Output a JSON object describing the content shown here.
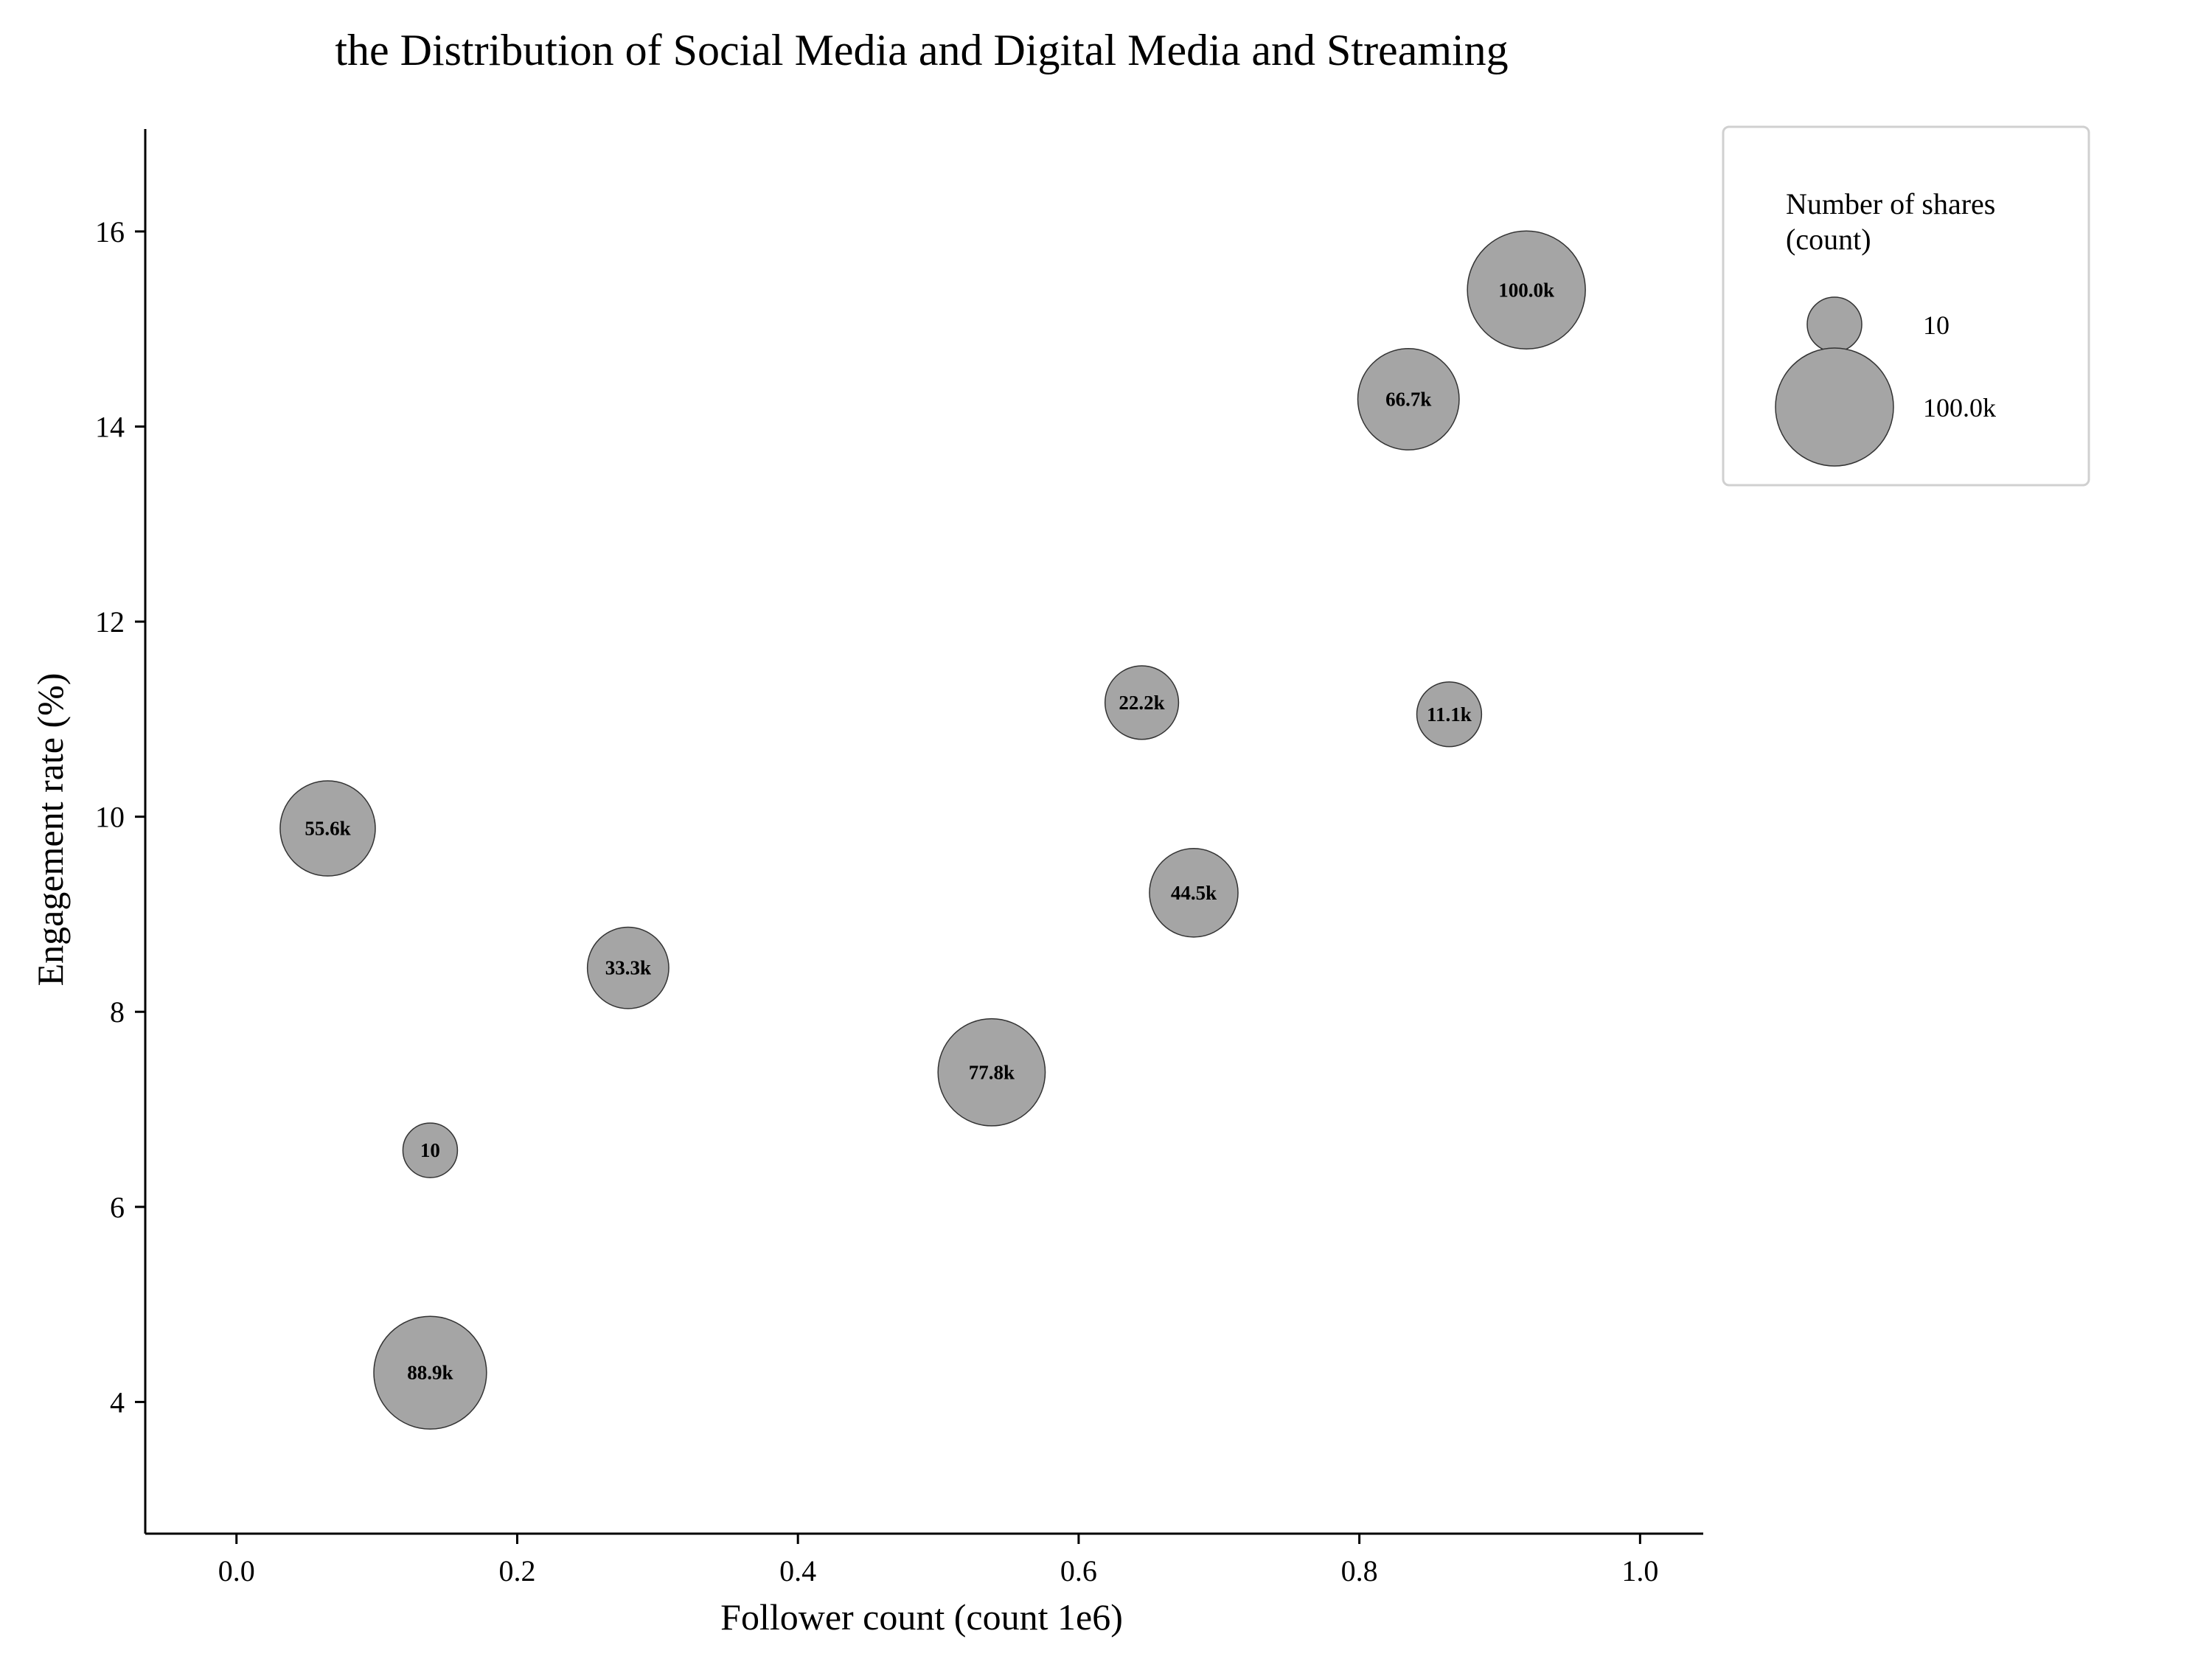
{
  "chart_data": {
    "type": "scatter",
    "title": "the Distribution of Social Media and Digital Media and Streaming",
    "xlabel": "Follower count (count 1e6)",
    "ylabel": "Engagement rate (%)",
    "xlim": [
      -0.065,
      1.045
    ],
    "ylim": [
      2.65,
      17.05
    ],
    "x_ticks": [
      0.0,
      0.2,
      0.4,
      0.6,
      0.8,
      1.0
    ],
    "x_tick_labels": [
      "0.0",
      "0.2",
      "0.4",
      "0.6",
      "0.8",
      "1.0"
    ],
    "y_ticks": [
      4,
      6,
      8,
      10,
      12,
      14,
      16
    ],
    "y_tick_labels": [
      "4",
      "6",
      "8",
      "10",
      "12",
      "14",
      "16"
    ],
    "grid": false,
    "legend_placement": "outside-top-right",
    "size_legend": {
      "title_lines": [
        "Number of shares",
        "(count)"
      ],
      "entries": [
        {
          "label": "10",
          "size": 10
        },
        {
          "label": "100.0k",
          "size": 100000
        }
      ]
    },
    "bubble_color": "#a5a5a5",
    "bubble_edge_color": "#333333",
    "points": [
      {
        "x": 0.065,
        "y": 9.88,
        "size": 55556,
        "label": "55.6k"
      },
      {
        "x": 0.138,
        "y": 6.58,
        "size": 10,
        "label": "10"
      },
      {
        "x": 0.138,
        "y": 4.3,
        "size": 88889,
        "label": "88.9k"
      },
      {
        "x": 0.279,
        "y": 8.45,
        "size": 33340,
        "label": "33.3k"
      },
      {
        "x": 0.538,
        "y": 7.38,
        "size": 77778,
        "label": "77.8k"
      },
      {
        "x": 0.645,
        "y": 11.17,
        "size": 22230,
        "label": "22.2k"
      },
      {
        "x": 0.682,
        "y": 9.22,
        "size": 44450,
        "label": "44.5k"
      },
      {
        "x": 0.835,
        "y": 14.28,
        "size": 66670,
        "label": "66.7k"
      },
      {
        "x": 0.864,
        "y": 11.05,
        "size": 11120,
        "label": "11.1k"
      },
      {
        "x": 0.919,
        "y": 15.4,
        "size": 100000,
        "label": "100.0k"
      }
    ]
  }
}
